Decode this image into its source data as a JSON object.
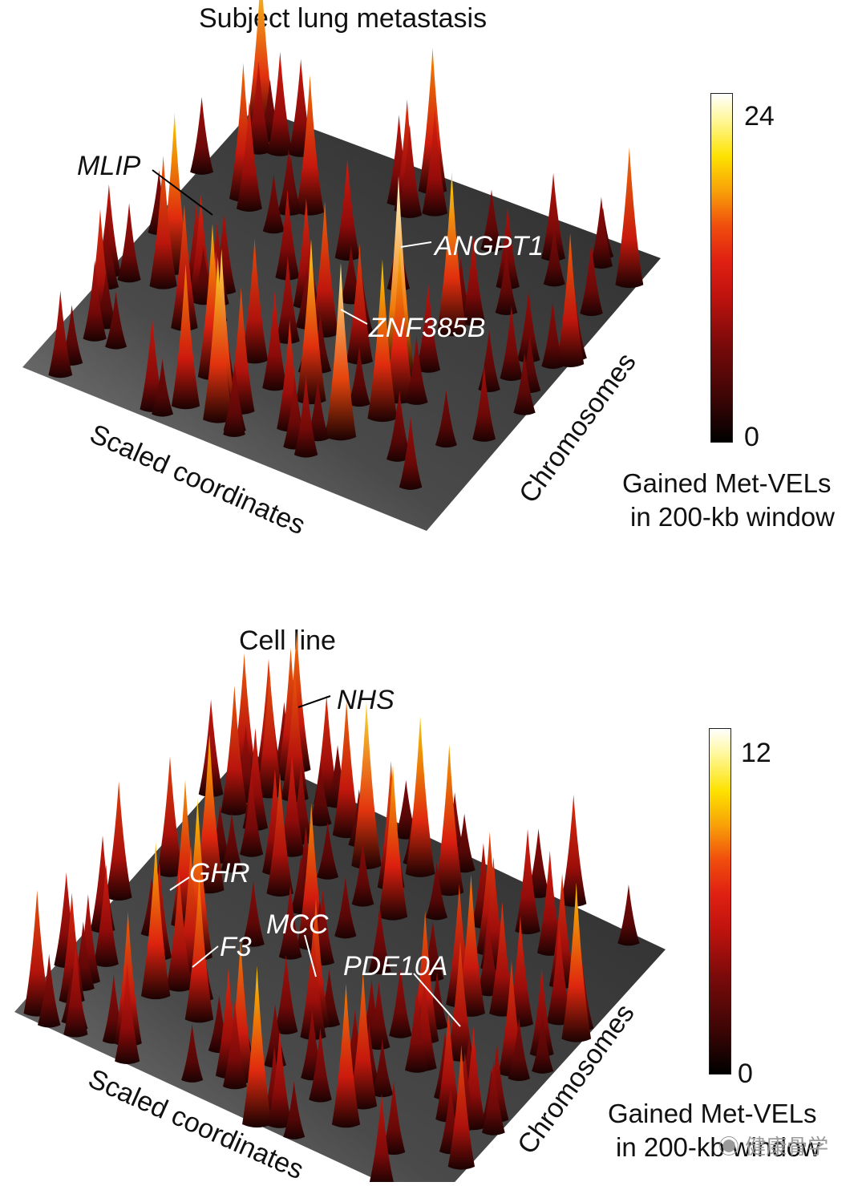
{
  "chart_data": [
    {
      "type": "surface",
      "title": "Subject lung metastasis",
      "xlabel": "Scaled coordinates",
      "ylabel": "Chromosomes",
      "zlabel": "Gained Met-VELs in 200-kb window",
      "colorbar": {
        "min": 0,
        "max": 24,
        "tick_labels": [
          "24",
          "0"
        ],
        "title_lines": [
          "Gained Met-VELs",
          "in 200-kb window"
        ]
      },
      "annotations": [
        {
          "label": "MLIP",
          "value": 13
        },
        {
          "label": "ANGPT1",
          "value": 22
        },
        {
          "label": "ZNF385B",
          "value": 17
        }
      ]
    },
    {
      "type": "surface",
      "title": "Cell line",
      "xlabel": "Scaled coordinates",
      "ylabel": "Chromosomes",
      "zlabel": "Gained Met-VELs in 200-kb window",
      "colorbar": {
        "min": 0,
        "max": 12,
        "tick_labels": [
          "12",
          "0"
        ],
        "title_lines": [
          "Gained Met-VELs",
          "in 200-kb window"
        ]
      },
      "annotations": [
        {
          "label": "NHS",
          "value": 12
        },
        {
          "label": "GHR",
          "value": 9
        },
        {
          "label": "F3",
          "value": 8
        },
        {
          "label": "MCC",
          "value": 7
        },
        {
          "label": "PDE10A",
          "value": 7
        }
      ]
    }
  ],
  "watermark": {
    "icon": "wechat-icon",
    "text": "健康骨学"
  }
}
